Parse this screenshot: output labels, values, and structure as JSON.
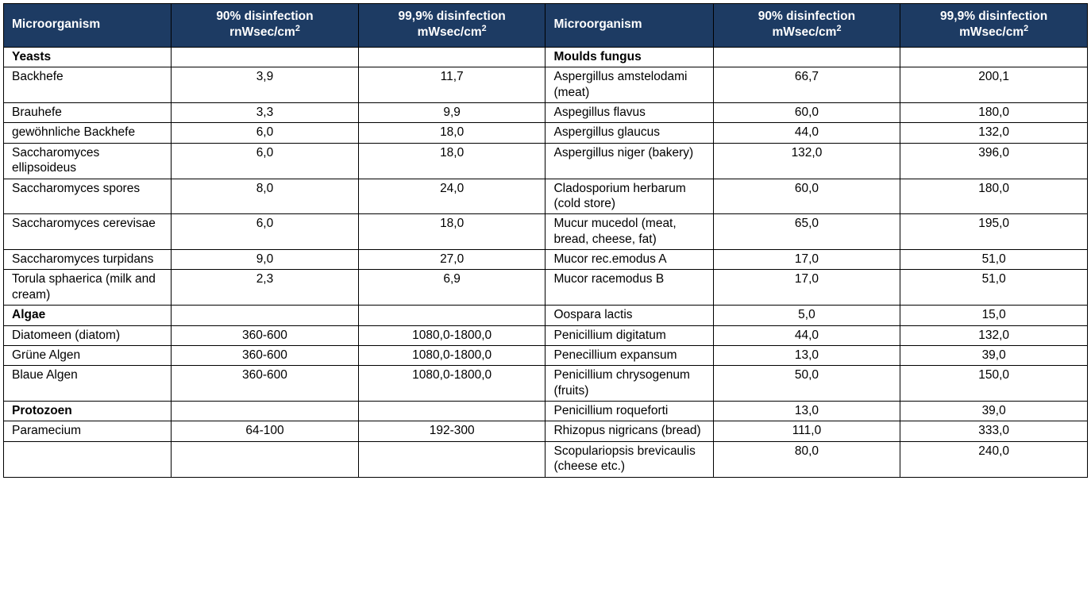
{
  "style": {
    "header_bg": "#1d3b63",
    "header_fg": "#ffffff",
    "body_bg": "#ffffff",
    "body_fg": "#000000",
    "border_color": "#000000",
    "font_size_pt": 12
  },
  "headers": {
    "left": {
      "c0": "Microorganism",
      "c1_l1": "90% disinfection",
      "c1_l2": "rnWsec/cm",
      "c2_l1": "99,9% disinfection",
      "c2_l2": "mWsec/cm"
    },
    "right": {
      "c0": "Microorganism",
      "c1_l1": "90% disinfection",
      "c1_l2": "mWsec/cm",
      "c2_l1": "99,9% disinfection",
      "c2_l2": "mWsec/cm"
    }
  },
  "rows": [
    {
      "l_kind": "section",
      "l_name": "Yeasts",
      "l_v90": "",
      "l_v999": "",
      "r_kind": "section",
      "r_name": "Moulds fungus",
      "r_v90": "",
      "r_v999": ""
    },
    {
      "l_kind": "data",
      "l_name": "Backhefe",
      "l_v90": "3,9",
      "l_v999": "11,7",
      "r_kind": "data",
      "r_name": "Aspergillus amstelodami (meat)",
      "r_v90": "66,7",
      "r_v999": "200,1"
    },
    {
      "l_kind": "data",
      "l_name": "Brauhefe",
      "l_v90": "3,3",
      "l_v999": "9,9",
      "r_kind": "data",
      "r_name": "Aspegillus flavus",
      "r_v90": "60,0",
      "r_v999": "180,0"
    },
    {
      "l_kind": "data",
      "l_name": "gewöhnliche Backhefe",
      "l_v90": "6,0",
      "l_v999": "18,0",
      "r_kind": "data",
      "r_name": "Aspergillus glaucus",
      "r_v90": "44,0",
      "r_v999": "132,0"
    },
    {
      "l_kind": "data",
      "l_name": "Saccharomyces ellipsoideus",
      "l_v90": "6,0",
      "l_v999": "18,0",
      "r_kind": "data",
      "r_name": "Aspergillus niger (bakery)",
      "r_v90": "132,0",
      "r_v999": "396,0"
    },
    {
      "l_kind": "data",
      "l_name": "Saccharomyces spores",
      "l_v90": "8,0",
      "l_v999": "24,0",
      "r_kind": "data",
      "r_name": "Cladosporium herbarum (cold store)",
      "r_v90": "60,0",
      "r_v999": "180,0"
    },
    {
      "l_kind": "data",
      "l_name": "Saccharomyces cerevisae",
      "l_v90": "6,0",
      "l_v999": "18,0",
      "r_kind": "data",
      "r_name": "Mucur mucedol (meat, bread, cheese, fat)",
      "r_v90": "65,0",
      "r_v999": "195,0"
    },
    {
      "l_kind": "data",
      "l_name": "Saccharomyces turpidans",
      "l_v90": "9,0",
      "l_v999": "27,0",
      "r_kind": "data",
      "r_name": "Mucor rec.emodus A",
      "r_v90": "17,0",
      "r_v999": "51,0"
    },
    {
      "l_kind": "data",
      "l_name": "Torula sphaerica (milk and cream)",
      "l_v90": "2,3",
      "l_v999": "6,9",
      "r_kind": "data",
      "r_name": "Mucor racemodus B",
      "r_v90": "17,0",
      "r_v999": "51,0"
    },
    {
      "l_kind": "section",
      "l_name": "Algae",
      "l_v90": "",
      "l_v999": "",
      "r_kind": "data",
      "r_name": "Oospara lactis",
      "r_v90": "5,0",
      "r_v999": "15,0"
    },
    {
      "l_kind": "data",
      "l_name": "Diatomeen (diatom)",
      "l_v90": "360-600",
      "l_v999": "1080,0-1800,0",
      "r_kind": "data",
      "r_name": "Penicillium digitatum",
      "r_v90": "44,0",
      "r_v999": "132,0"
    },
    {
      "l_kind": "data",
      "l_name": "Grüne Algen",
      "l_v90": "360-600",
      "l_v999": "1080,0-1800,0",
      "r_kind": "data",
      "r_name": "Penecillium expansum",
      "r_v90": "13,0",
      "r_v999": "39,0"
    },
    {
      "l_kind": "data",
      "l_name": "Blaue Algen",
      "l_v90": "360-600",
      "l_v999": "1080,0-1800,0",
      "r_kind": "data",
      "r_name": "Penicillium chrysogenum (fruits)",
      "r_v90": "50,0",
      "r_v999": "150,0"
    },
    {
      "l_kind": "section",
      "l_name": "Protozoen",
      "l_v90": "",
      "l_v999": "",
      "r_kind": "data",
      "r_name": "Penicillium roqueforti",
      "r_v90": "13,0",
      "r_v999": "39,0"
    },
    {
      "l_kind": "data",
      "l_name": "Paramecium",
      "l_v90": "64-100",
      "l_v999": "192-300",
      "r_kind": "data",
      "r_name": "Rhizopus nigricans (bread)",
      "r_v90": "111,0",
      "r_v999": "333,0"
    },
    {
      "l_kind": "empty",
      "l_name": "",
      "l_v90": "",
      "l_v999": "",
      "r_kind": "data",
      "r_name": "Scopulariopsis brevicaulis (cheese etc.)",
      "r_v90": "80,0",
      "r_v999": "240,0"
    }
  ]
}
